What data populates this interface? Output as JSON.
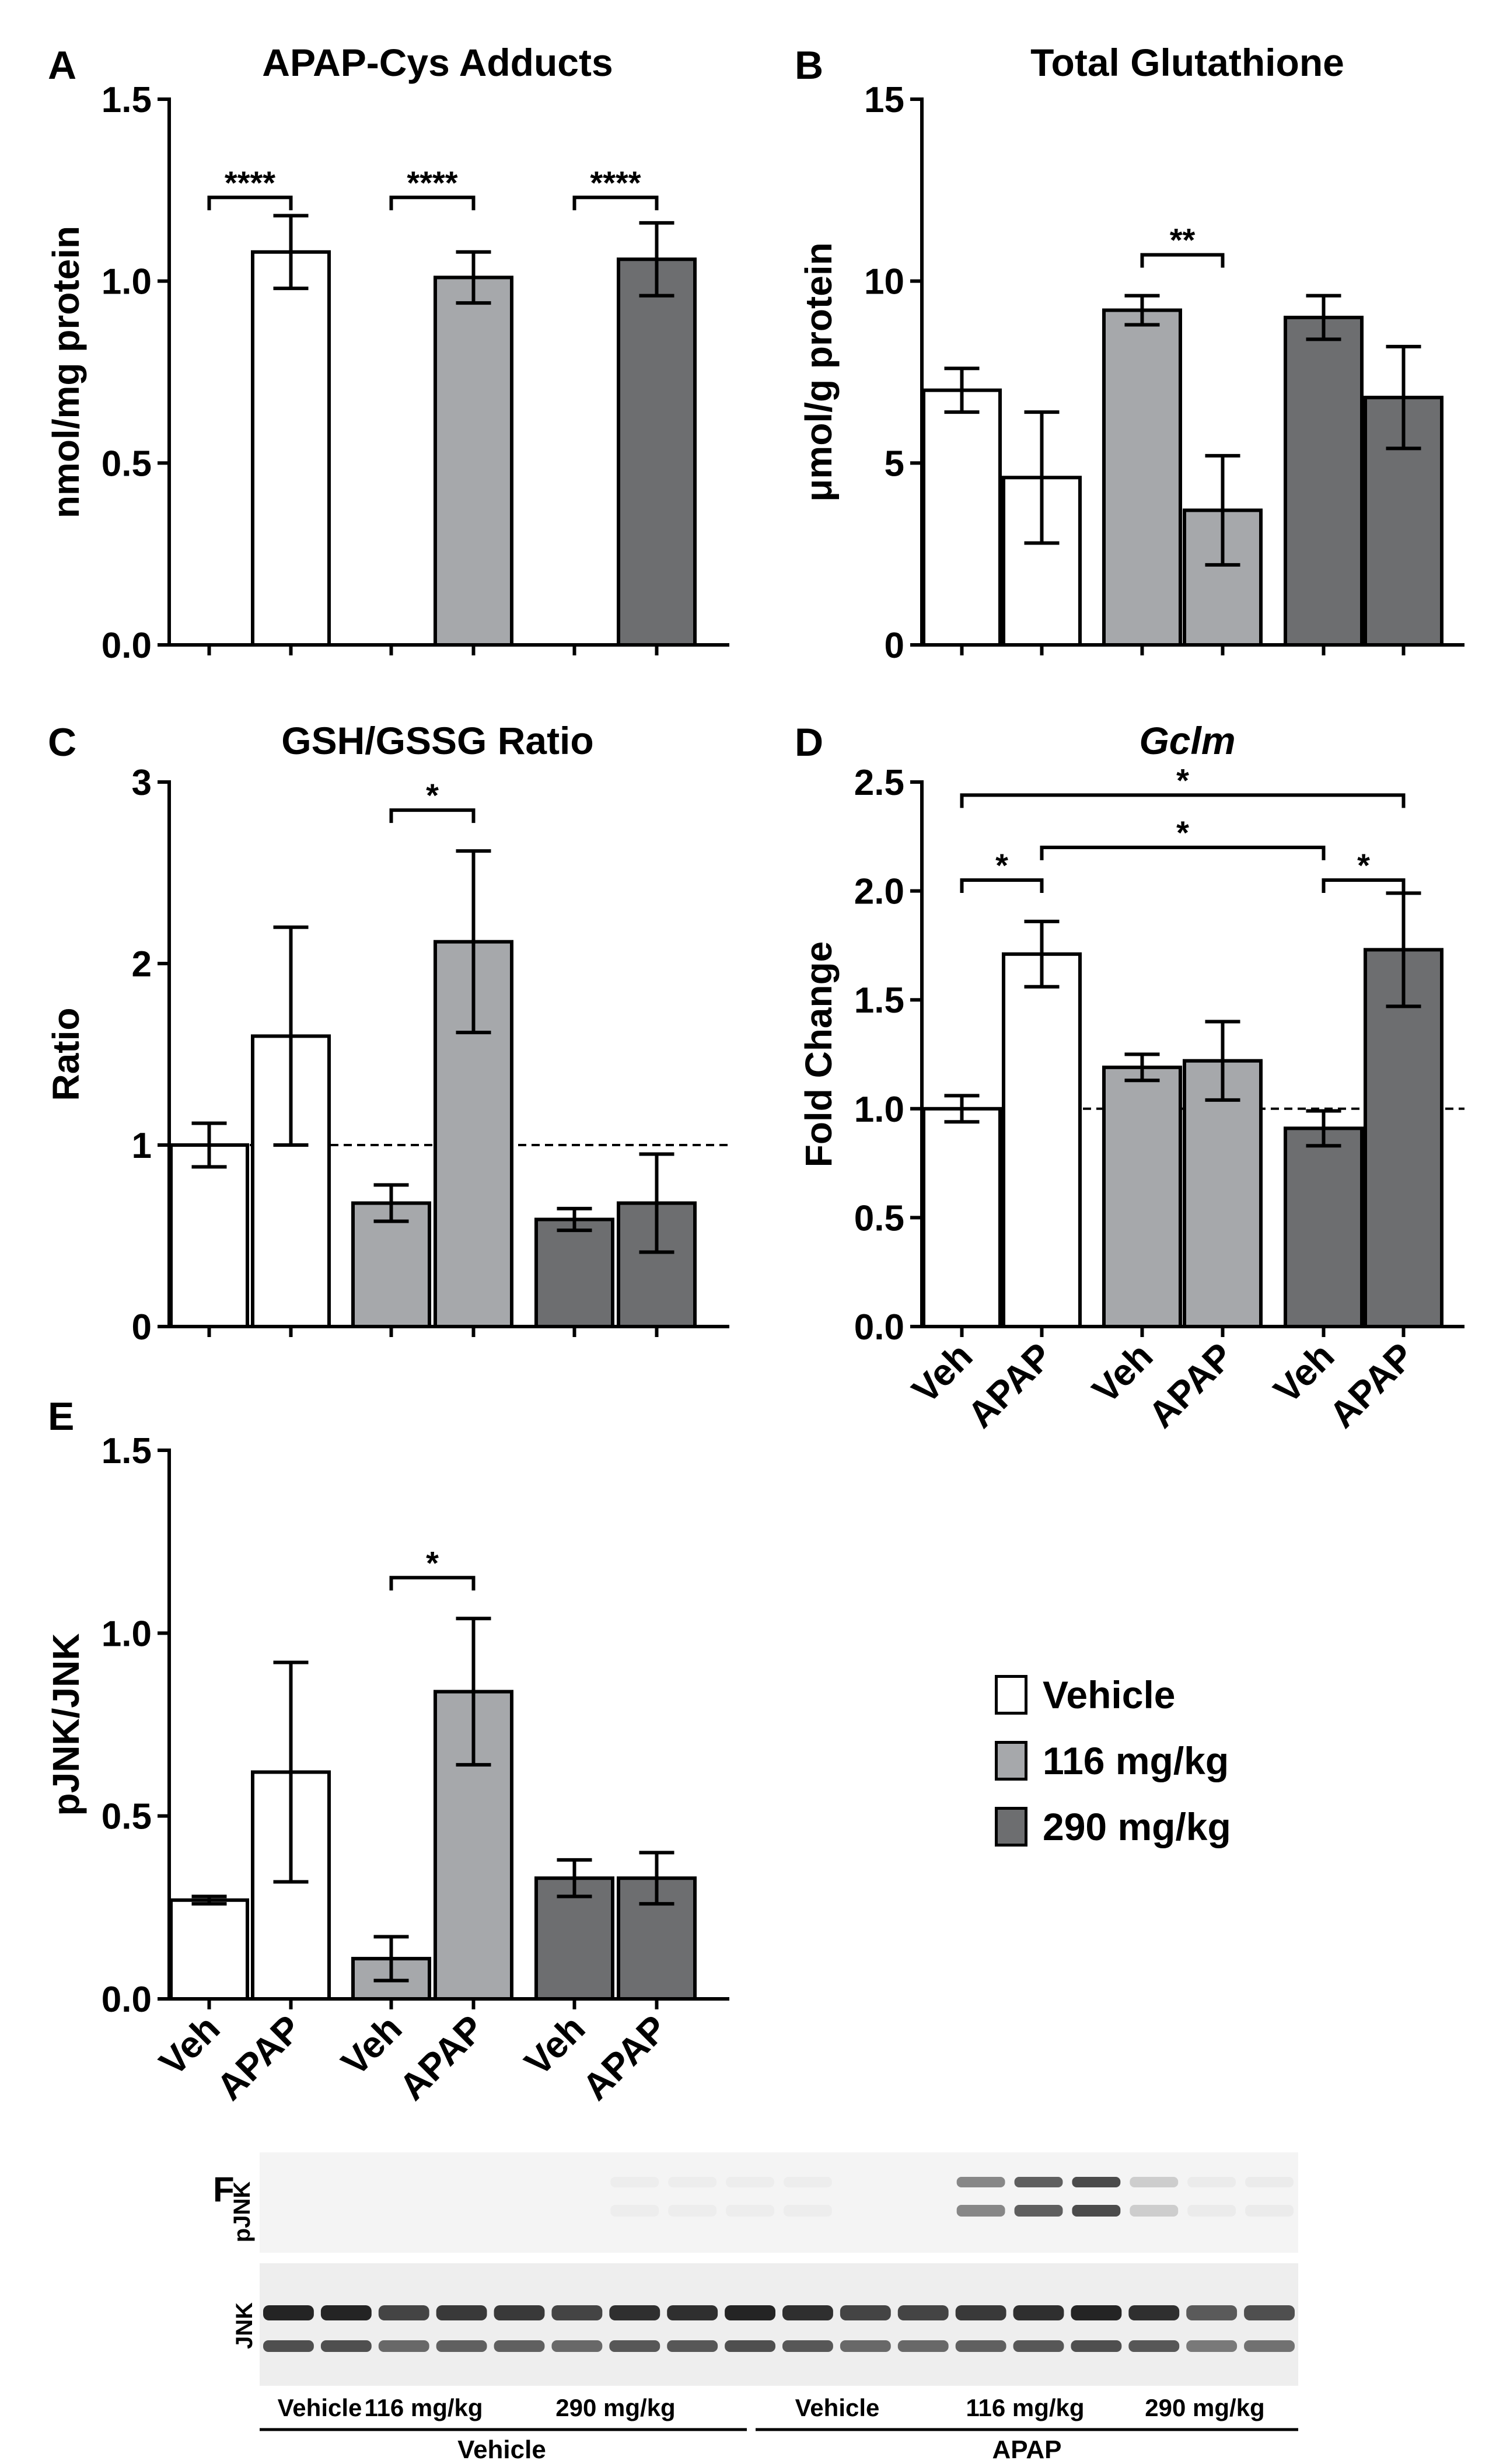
{
  "colors": {
    "vehicle": "#ffffff",
    "dose116": "#a6a8ab",
    "dose290": "#6d6e70",
    "axis": "#000000"
  },
  "group_order": [
    "vehicle",
    "dose116",
    "dose290"
  ],
  "legend": {
    "items": [
      {
        "key": "vehicle",
        "label": "Vehicle"
      },
      {
        "key": "dose116",
        "label": "116 mg/kg"
      },
      {
        "key": "dose290",
        "label": "290 mg/kg"
      }
    ]
  },
  "chart_data": [
    {
      "panel": "A",
      "type": "bar",
      "title": "APAP-Cys Adducts",
      "title_italic": false,
      "ylabel": "nmol/mg protein",
      "ylim": [
        0,
        1.5
      ],
      "yticks": [
        "0.0",
        "0.5",
        "1.0",
        "1.5"
      ],
      "ytick_values": [
        0,
        0.5,
        1.0,
        1.5
      ],
      "xtick_labels": [],
      "series": [
        {
          "group": "vehicle",
          "treatment": "Veh",
          "value": 0,
          "error": 0
        },
        {
          "group": "vehicle",
          "treatment": "APAP",
          "value": 1.08,
          "error": 0.1
        },
        {
          "group": "dose116",
          "treatment": "Veh",
          "value": 0,
          "error": 0
        },
        {
          "group": "dose116",
          "treatment": "APAP",
          "value": 1.01,
          "error": 0.07
        },
        {
          "group": "dose290",
          "treatment": "Veh",
          "value": 0,
          "error": 0
        },
        {
          "group": "dose290",
          "treatment": "APAP",
          "value": 1.06,
          "error": 0.1
        }
      ],
      "reference_line": null,
      "significance": [
        {
          "from": 0,
          "to": 1,
          "label": "****"
        },
        {
          "from": 2,
          "to": 3,
          "label": "****"
        },
        {
          "from": 4,
          "to": 5,
          "label": "****"
        }
      ]
    },
    {
      "panel": "B",
      "type": "bar",
      "title": "Total Glutathione",
      "title_italic": false,
      "ylabel": "μmol/g protein",
      "ylim": [
        0,
        15
      ],
      "yticks": [
        "0",
        "5",
        "10",
        "15"
      ],
      "ytick_values": [
        0,
        5,
        10,
        15
      ],
      "xtick_labels": [],
      "series": [
        {
          "group": "vehicle",
          "treatment": "Veh",
          "value": 7.0,
          "error": 0.6
        },
        {
          "group": "vehicle",
          "treatment": "APAP",
          "value": 4.6,
          "error": 1.8
        },
        {
          "group": "dose116",
          "treatment": "Veh",
          "value": 9.2,
          "error": 0.4
        },
        {
          "group": "dose116",
          "treatment": "APAP",
          "value": 3.7,
          "error": 1.5
        },
        {
          "group": "dose290",
          "treatment": "Veh",
          "value": 9.0,
          "error": 0.6
        },
        {
          "group": "dose290",
          "treatment": "APAP",
          "value": 6.8,
          "error": 1.4
        }
      ],
      "reference_line": null,
      "significance": [
        {
          "from": 2,
          "to": 3,
          "label": "**"
        }
      ]
    },
    {
      "panel": "C",
      "type": "bar",
      "title": "GSH/GSSG Ratio",
      "title_italic": false,
      "ylabel": "Ratio",
      "ylim": [
        0,
        3
      ],
      "yticks": [
        "0",
        "1",
        "2",
        "3"
      ],
      "ytick_values": [
        0,
        1,
        2,
        3
      ],
      "xtick_labels": [],
      "series": [
        {
          "group": "vehicle",
          "treatment": "Veh",
          "value": 1.0,
          "error": 0.12
        },
        {
          "group": "vehicle",
          "treatment": "APAP",
          "value": 1.6,
          "error": 0.6
        },
        {
          "group": "dose116",
          "treatment": "Veh",
          "value": 0.68,
          "error": 0.1
        },
        {
          "group": "dose116",
          "treatment": "APAP",
          "value": 2.12,
          "error": 0.5
        },
        {
          "group": "dose290",
          "treatment": "Veh",
          "value": 0.59,
          "error": 0.06
        },
        {
          "group": "dose290",
          "treatment": "APAP",
          "value": 0.68,
          "error": 0.27
        }
      ],
      "reference_line": 1,
      "significance": [
        {
          "from": 2,
          "to": 3,
          "label": "*"
        }
      ]
    },
    {
      "panel": "D",
      "type": "bar",
      "title": "Gclm",
      "title_italic": true,
      "ylabel": "Fold  Change",
      "ylim": [
        0,
        2.5
      ],
      "yticks": [
        "0.0",
        "0.5",
        "1.0",
        "1.5",
        "2.0",
        "2.5"
      ],
      "ytick_values": [
        0,
        0.5,
        1.0,
        1.5,
        2.0,
        2.5
      ],
      "xtick_labels": [
        "Veh",
        "APAP",
        "Veh",
        "APAP",
        "Veh",
        "APAP"
      ],
      "series": [
        {
          "group": "vehicle",
          "treatment": "Veh",
          "value": 1.0,
          "error": 0.06
        },
        {
          "group": "vehicle",
          "treatment": "APAP",
          "value": 1.71,
          "error": 0.15
        },
        {
          "group": "dose116",
          "treatment": "Veh",
          "value": 1.19,
          "error": 0.06
        },
        {
          "group": "dose116",
          "treatment": "APAP",
          "value": 1.22,
          "error": 0.18
        },
        {
          "group": "dose290",
          "treatment": "Veh",
          "value": 0.91,
          "error": 0.08
        },
        {
          "group": "dose290",
          "treatment": "APAP",
          "value": 1.73,
          "error": 0.26
        }
      ],
      "reference_line": 1,
      "significance": [
        {
          "from": 0,
          "to": 1,
          "label": "*"
        },
        {
          "from": 4,
          "to": 5,
          "label": "*"
        },
        {
          "from": 1,
          "to": 4,
          "label": "*"
        },
        {
          "from": 0,
          "to": 5,
          "label": "*"
        }
      ]
    },
    {
      "panel": "E",
      "type": "bar",
      "title": "",
      "title_italic": false,
      "ylabel": "pJNK/JNK",
      "ylim": [
        0,
        1.5
      ],
      "yticks": [
        "0.0",
        "0.5",
        "1.0",
        "1.5"
      ],
      "ytick_values": [
        0,
        0.5,
        1.0,
        1.5
      ],
      "xtick_labels": [
        "Veh",
        "APAP",
        "Veh",
        "APAP",
        "Veh",
        "APAP"
      ],
      "series": [
        {
          "group": "vehicle",
          "treatment": "Veh",
          "value": 0.27,
          "error": 0.01
        },
        {
          "group": "vehicle",
          "treatment": "APAP",
          "value": 0.62,
          "error": 0.3
        },
        {
          "group": "dose116",
          "treatment": "Veh",
          "value": 0.11,
          "error": 0.06
        },
        {
          "group": "dose116",
          "treatment": "APAP",
          "value": 0.84,
          "error": 0.2
        },
        {
          "group": "dose290",
          "treatment": "Veh",
          "value": 0.33,
          "error": 0.05
        },
        {
          "group": "dose290",
          "treatment": "APAP",
          "value": 0.33,
          "error": 0.07
        }
      ],
      "reference_line": null,
      "significance": [
        {
          "from": 2,
          "to": 3,
          "label": "*"
        }
      ]
    }
  ],
  "blot": {
    "panel": "F",
    "row_labels": [
      "pJNK",
      "JNK"
    ],
    "lane_groups": [
      "Vehicle",
      "116 mg/kg",
      "290 mg/kg",
      "Vehicle",
      "116 mg/kg",
      "290 mg/kg"
    ],
    "treatment_labels": [
      "Vehicle",
      "APAP"
    ],
    "lane_count": 18,
    "pjnk_band_strength": [
      0,
      0,
      0,
      0,
      0,
      0,
      0.04,
      0.04,
      0.04,
      0.04,
      0,
      0,
      0.55,
      0.75,
      0.85,
      0.2,
      0.05,
      0.05
    ],
    "jnk_band_strength": [
      0.95,
      0.95,
      0.8,
      0.85,
      0.85,
      0.8,
      0.9,
      0.9,
      0.95,
      0.9,
      0.8,
      0.8,
      0.85,
      0.9,
      0.95,
      0.9,
      0.7,
      0.75
    ]
  }
}
